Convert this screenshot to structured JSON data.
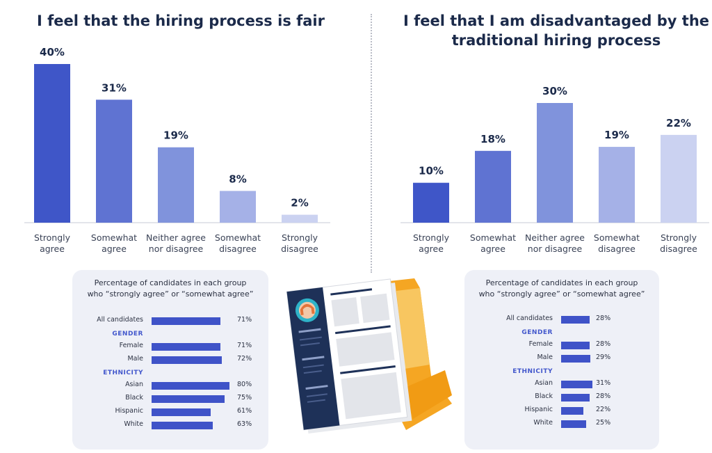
{
  "chart_data": [
    {
      "type": "bar",
      "title": "I feel that the hiring process is fair",
      "categories": [
        "Strongly agree",
        "Somewhat agree",
        "Neither agree nor disagree",
        "Somewhat disagree",
        "Strongly disagree"
      ],
      "category_lines": [
        [
          "Strongly",
          "agree"
        ],
        [
          "Somewhat",
          "agree"
        ],
        [
          "Neither agree",
          "nor disagree"
        ],
        [
          "Somewhat",
          "disagree"
        ],
        [
          "Strongly",
          "disagree"
        ]
      ],
      "values": [
        40,
        31,
        19,
        8,
        2
      ],
      "value_labels": [
        "40%",
        "31%",
        "19%",
        "8%",
        "2%"
      ],
      "colors": [
        "#3f56c8",
        "#5f73d2",
        "#8093dc",
        "#a5b1e7",
        "#cbd2f1"
      ],
      "ylim": [
        0,
        40
      ]
    },
    {
      "type": "bar",
      "title": "I feel that I am disadvantaged by the traditional hiring process",
      "categories": [
        "Strongly agree",
        "Somewhat agree",
        "Neither agree nor disagree",
        "Somewhat disagree",
        "Strongly disagree"
      ],
      "category_lines": [
        [
          "Strongly",
          "agree"
        ],
        [
          "Somewhat",
          "agree"
        ],
        [
          "Neither agree",
          "nor disagree"
        ],
        [
          "Somewhat",
          "disagree"
        ],
        [
          "Strongly",
          "disagree"
        ]
      ],
      "values": [
        10,
        18,
        30,
        19,
        22
      ],
      "value_labels": [
        "10%",
        "18%",
        "30%",
        "19%",
        "22%"
      ],
      "colors": [
        "#3f56c8",
        "#5f73d2",
        "#8093dc",
        "#a5b1e7",
        "#cbd2f1"
      ],
      "ylim": [
        0,
        30
      ]
    },
    {
      "type": "bar",
      "orientation": "horizontal",
      "title": "Percentage of candidates in each group who “strongly agree” or “somewhat agree”",
      "groups": [
        {
          "heading": "",
          "items": [
            {
              "label": "All candidates",
              "value": 71,
              "text": "71%"
            }
          ]
        },
        {
          "heading": "GENDER",
          "items": [
            {
              "label": "Female",
              "value": 71,
              "text": "71%"
            },
            {
              "label": "Male",
              "value": 72,
              "text": "72%"
            }
          ]
        },
        {
          "heading": "ETHNICITY",
          "items": [
            {
              "label": "Asian",
              "value": 80,
              "text": "80%"
            },
            {
              "label": "Black",
              "value": 75,
              "text": "75%"
            },
            {
              "label": "Hispanic",
              "value": 61,
              "text": "61%"
            },
            {
              "label": "White",
              "value": 63,
              "text": "63%"
            }
          ]
        }
      ],
      "bar_color": "#3f53c8"
    },
    {
      "type": "bar",
      "orientation": "horizontal",
      "title": "Percentage of candidates in each group who “strongly agree” or “somewhat agree”",
      "groups": [
        {
          "heading": "",
          "items": [
            {
              "label": "All candidates",
              "value": 28,
              "text": "28%"
            }
          ]
        },
        {
          "heading": "GENDER",
          "items": [
            {
              "label": "Female",
              "value": 28,
              "text": "28%"
            },
            {
              "label": "Male",
              "value": 29,
              "text": "29%"
            }
          ]
        },
        {
          "heading": "ETHNICITY",
          "items": [
            {
              "label": "Asian",
              "value": 31,
              "text": "31%"
            },
            {
              "label": "Black",
              "value": 28,
              "text": "28%"
            },
            {
              "label": "Hispanic",
              "value": 22,
              "text": "22%"
            },
            {
              "label": "White",
              "value": 25,
              "text": "25%"
            }
          ]
        }
      ],
      "bar_color": "#3f53c8"
    }
  ],
  "colors": {
    "title": "#1b2a4a",
    "accent": "#3f53c8",
    "card_bg": "#eef0f7",
    "folder": "#f5a623",
    "resume_sidebar": "#1e3158"
  },
  "illustration": {
    "icon": "resume-folder-icon"
  }
}
